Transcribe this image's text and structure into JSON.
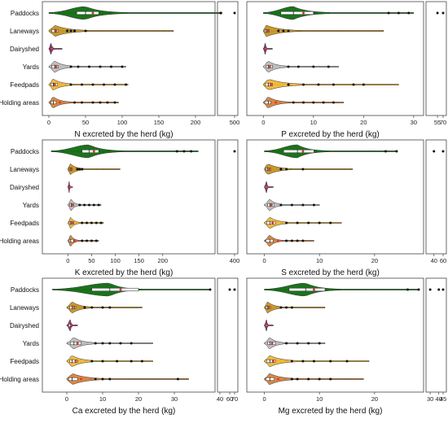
{
  "categories": [
    "Paddocks",
    "Laneways",
    "Dairyshed",
    "Yards",
    "Feedpads",
    "Holding areas"
  ],
  "category_colors": {
    "Paddocks": "#0f6b0f",
    "Laneways": "#c8961e",
    "Dairyshed": "#8b2e7a",
    "Yards": "#bdbdbd",
    "Feedpads": "#f2b733",
    "Holding areas": "#d9823a"
  },
  "chart_data": [
    {
      "type": "violin",
      "xlabel": "N excreted by the herd (kg)",
      "xlim": [
        0,
        220
      ],
      "ticks": [
        0,
        50,
        100,
        150,
        200
      ],
      "break_ticks": [
        500
      ],
      "series": [
        {
          "category": "Paddocks",
          "min": 0,
          "q1": 38,
          "median": 50,
          "mean": 60,
          "q3": 68,
          "max": 230,
          "outliers": [
            232,
            235,
            240,
            500
          ]
        },
        {
          "category": "Laneways",
          "min": 0,
          "q1": 4,
          "median": 8,
          "mean": 10,
          "q3": 13,
          "max": 170,
          "outliers": [
            25,
            30,
            35,
            50
          ]
        },
        {
          "category": "Dairyshed",
          "min": 0,
          "q1": 2,
          "median": 3,
          "mean": 4,
          "q3": 5,
          "max": 18,
          "outliers": []
        },
        {
          "category": "Yards",
          "min": 0,
          "q1": 4,
          "median": 8,
          "mean": 10,
          "q3": 13,
          "max": 105,
          "outliers": [
            30,
            40,
            55,
            70,
            85,
            100
          ]
        },
        {
          "category": "Feedpads",
          "min": 0,
          "q1": 3,
          "median": 6,
          "mean": 8,
          "q3": 12,
          "max": 108,
          "outliers": [
            30,
            45,
            60,
            75,
            90,
            105
          ]
        },
        {
          "category": "Holding areas",
          "min": 0,
          "q1": 3,
          "median": 6,
          "mean": 15,
          "q3": 10,
          "max": 95,
          "outliers": [
            35,
            45,
            60,
            70,
            80,
            90
          ]
        }
      ]
    },
    {
      "type": "violin",
      "xlabel": "P excreted by the herd (kg)",
      "xlim": [
        -2,
        31
      ],
      "ticks": [
        0,
        10,
        20,
        30
      ],
      "break_ticks": [
        55,
        70
      ],
      "series": [
        {
          "category": "Paddocks",
          "min": 0,
          "q1": 3.5,
          "median": 6,
          "mean": 8,
          "q3": 10,
          "max": 30,
          "outliers": [
            25,
            27,
            29,
            55,
            70
          ]
        },
        {
          "category": "Laneways",
          "min": 0,
          "q1": 0.3,
          "median": 0.6,
          "mean": 0.9,
          "q3": 1.2,
          "max": 24,
          "outliers": [
            3,
            4,
            5
          ]
        },
        {
          "category": "Dairyshed",
          "min": 0,
          "q1": 0.2,
          "median": 0.4,
          "mean": 0.5,
          "q3": 0.6,
          "max": 1.8,
          "outliers": []
        },
        {
          "category": "Yards",
          "min": 0,
          "q1": 0.6,
          "median": 1,
          "mean": 1.3,
          "q3": 1.8,
          "max": 15,
          "outliers": [
            5,
            7,
            10,
            13
          ]
        },
        {
          "category": "Feedpads",
          "min": 0,
          "q1": 0.4,
          "median": 1,
          "mean": 1.5,
          "q3": 1.8,
          "max": 27,
          "outliers": [
            5,
            8,
            11,
            14,
            18,
            20
          ]
        },
        {
          "category": "Holding areas",
          "min": 0,
          "q1": 0.3,
          "median": 1,
          "mean": 2.5,
          "q3": 1.5,
          "max": 16,
          "outliers": [
            6,
            8,
            10,
            12,
            14
          ]
        }
      ]
    },
    {
      "type": "violin",
      "xlabel": "K excreted by the herd (kg)",
      "xlim": [
        -40,
        300
      ],
      "ticks": [
        0,
        50,
        100,
        150,
        200
      ],
      "break_ticks": [
        400
      ],
      "series": [
        {
          "category": "Paddocks",
          "min": -35,
          "q1": 30,
          "median": 45,
          "mean": 55,
          "q3": 65,
          "max": 275,
          "outliers": [
            230,
            245,
            260,
            400
          ]
        },
        {
          "category": "Laneways",
          "min": 0,
          "q1": 3,
          "median": 5,
          "mean": 7,
          "q3": 9,
          "max": 110,
          "outliers": [
            20,
            25,
            30
          ]
        },
        {
          "category": "Dairyshed",
          "min": 0,
          "q1": 2,
          "median": 3,
          "mean": 4,
          "q3": 5,
          "max": 10,
          "outliers": []
        },
        {
          "category": "Yards",
          "min": 0,
          "q1": 4,
          "median": 7,
          "mean": 9,
          "q3": 12,
          "max": 70,
          "outliers": [
            25,
            35,
            45,
            55,
            65
          ]
        },
        {
          "category": "Feedpads",
          "min": 0,
          "q1": 3,
          "median": 6,
          "mean": 9,
          "q3": 12,
          "max": 75,
          "outliers": [
            30,
            40,
            50,
            60,
            70
          ]
        },
        {
          "category": "Holding areas",
          "min": 0,
          "q1": 3,
          "median": 6,
          "mean": 15,
          "q3": 12,
          "max": 65,
          "outliers": [
            30,
            40,
            50,
            60
          ]
        }
      ]
    },
    {
      "type": "violin",
      "xlabel": "S excreted by the herd (kg)",
      "xlim": [
        -2,
        28
      ],
      "ticks": [
        0,
        10,
        20
      ],
      "break_ticks": [
        40,
        60
      ],
      "series": [
        {
          "category": "Paddocks",
          "min": 0,
          "q1": 3.5,
          "median": 6,
          "mean": 7,
          "q3": 9,
          "max": 24,
          "outliers": [
            22,
            24,
            40,
            60
          ]
        },
        {
          "category": "Laneways",
          "min": 0,
          "q1": 0.3,
          "median": 0.6,
          "mean": 0.9,
          "q3": 1.2,
          "max": 16,
          "outliers": [
            3,
            4,
            7
          ]
        },
        {
          "category": "Dairyshed",
          "min": 0,
          "q1": 0.2,
          "median": 0.4,
          "mean": 0.5,
          "q3": 0.6,
          "max": 1.6,
          "outliers": []
        },
        {
          "category": "Yards",
          "min": 0,
          "q1": 0.6,
          "median": 1,
          "mean": 1.3,
          "q3": 1.8,
          "max": 10,
          "outliers": [
            3,
            5,
            7,
            9
          ]
        },
        {
          "category": "Feedpads",
          "min": 0,
          "q1": 0.4,
          "median": 1,
          "mean": 1.5,
          "q3": 2,
          "max": 14,
          "outliers": [
            4,
            6,
            8,
            10,
            12
          ]
        },
        {
          "category": "Holding areas",
          "min": 0,
          "q1": 0.3,
          "median": 1,
          "mean": 2.5,
          "q3": 1.6,
          "max": 9,
          "outliers": [
            4,
            5,
            6,
            7
          ]
        }
      ]
    },
    {
      "type": "violin",
      "xlabel": "Ca excreted by the herd (kg)",
      "xlim": [
        -5,
        40
      ],
      "ticks": [
        0,
        10,
        20,
        30
      ],
      "break_ticks": [
        40,
        60,
        70
      ],
      "series": [
        {
          "category": "Paddocks",
          "min": -4,
          "q1": 7,
          "median": 12,
          "mean": 15,
          "q3": 20,
          "max": 40,
          "outliers": [
            40,
            60,
            70
          ]
        },
        {
          "category": "Laneways",
          "min": 0,
          "q1": 0.8,
          "median": 1.5,
          "mean": 2,
          "q3": 2.5,
          "max": 21,
          "outliers": [
            5,
            7,
            10,
            12
          ]
        },
        {
          "category": "Dairyshed",
          "min": 0,
          "q1": 0.5,
          "median": 1,
          "mean": 1.2,
          "q3": 1.5,
          "max": 3,
          "outliers": []
        },
        {
          "category": "Yards",
          "min": 0,
          "q1": 1,
          "median": 2,
          "mean": 3,
          "q3": 4,
          "max": 24,
          "outliers": [
            8,
            10,
            12,
            15,
            18
          ]
        },
        {
          "category": "Feedpads",
          "min": 0,
          "q1": 0.8,
          "median": 1.5,
          "mean": 2.5,
          "q3": 3,
          "max": 24,
          "outliers": [
            7,
            10,
            14,
            18,
            21
          ]
        },
        {
          "category": "Holding areas",
          "min": 0,
          "q1": 0.5,
          "median": 1.5,
          "mean": 4,
          "q3": 3,
          "max": 34,
          "outliers": [
            8,
            10,
            12,
            31
          ]
        }
      ]
    },
    {
      "type": "violin",
      "xlabel": "Mg excreted by the herd (kg)",
      "xlim": [
        -2,
        28
      ],
      "ticks": [
        0,
        10,
        20
      ],
      "break_ticks": [
        30,
        40,
        45
      ],
      "series": [
        {
          "category": "Paddocks",
          "min": 0,
          "q1": 4.5,
          "median": 7.5,
          "mean": 9,
          "q3": 11,
          "max": 28,
          "outliers": [
            26,
            28,
            30,
            40,
            45
          ]
        },
        {
          "category": "Laneways",
          "min": 0,
          "q1": 0.3,
          "median": 0.6,
          "mean": 0.8,
          "q3": 1.1,
          "max": 11,
          "outliers": [
            3,
            4,
            5
          ]
        },
        {
          "category": "Dairyshed",
          "min": 0,
          "q1": 0.2,
          "median": 0.4,
          "mean": 0.5,
          "q3": 0.6,
          "max": 1.6,
          "outliers": []
        },
        {
          "category": "Yards",
          "min": 0,
          "q1": 0.6,
          "median": 1,
          "mean": 1.4,
          "q3": 2,
          "max": 11,
          "outliers": [
            4,
            6,
            8,
            10
          ]
        },
        {
          "category": "Feedpads",
          "min": 0,
          "q1": 0.4,
          "median": 1,
          "mean": 1.6,
          "q3": 2,
          "max": 19,
          "outliers": [
            5,
            7,
            9,
            12,
            15
          ]
        },
        {
          "category": "Holding areas",
          "min": 0,
          "q1": 0.3,
          "median": 1,
          "mean": 2.5,
          "q3": 1.8,
          "max": 18,
          "outliers": [
            5,
            6,
            8,
            10,
            12
          ]
        }
      ]
    }
  ]
}
